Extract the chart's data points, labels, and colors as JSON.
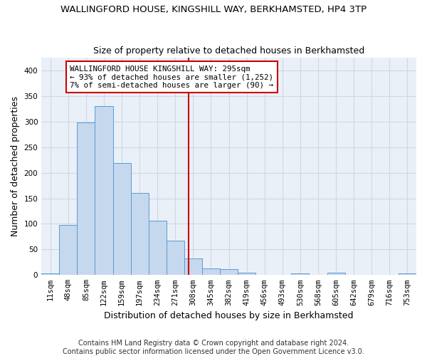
{
  "title": "WALLINGFORD HOUSE, KINGSHILL WAY, BERKHAMSTED, HP4 3TP",
  "subtitle": "Size of property relative to detached houses in Berkhamsted",
  "xlabel": "Distribution of detached houses by size in Berkhamsted",
  "ylabel": "Number of detached properties",
  "footnote1": "Contains HM Land Registry data © Crown copyright and database right 2024.",
  "footnote2": "Contains public sector information licensed under the Open Government Licence v3.0.",
  "bar_labels": [
    "11sqm",
    "48sqm",
    "85sqm",
    "122sqm",
    "159sqm",
    "197sqm",
    "234sqm",
    "271sqm",
    "308sqm",
    "345sqm",
    "382sqm",
    "419sqm",
    "456sqm",
    "493sqm",
    "530sqm",
    "568sqm",
    "605sqm",
    "642sqm",
    "679sqm",
    "716sqm",
    "753sqm"
  ],
  "bar_values": [
    3,
    98,
    298,
    330,
    219,
    161,
    106,
    67,
    33,
    13,
    11,
    4,
    1,
    0,
    3,
    0,
    4,
    0,
    0,
    0,
    3
  ],
  "bar_color": "#c5d8ed",
  "bar_edge_color": "#5b9bd5",
  "grid_color": "#d0d8e4",
  "background_color": "#eaf0f8",
  "vline_x": 7.73,
  "vline_color": "#cc0000",
  "annotation_text": "WALLINGFORD HOUSE KINGSHILL WAY: 295sqm\n← 93% of detached houses are smaller (1,252)\n7% of semi-detached houses are larger (90) →",
  "annotation_box_color": "#ffffff",
  "annotation_box_edge": "#cc0000",
  "ylim": [
    0,
    425
  ],
  "yticks": [
    0,
    50,
    100,
    150,
    200,
    250,
    300,
    350,
    400
  ],
  "title_fontsize": 9.5,
  "subtitle_fontsize": 9.0,
  "ylabel_fontsize": 9.0,
  "xlabel_fontsize": 9.0,
  "tick_fontsize": 7.5,
  "footnote_fontsize": 7.0,
  "annotation_fontsize": 7.8
}
